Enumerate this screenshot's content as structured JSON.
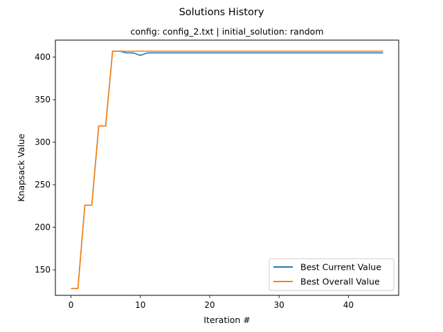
{
  "chart_data": {
    "type": "line",
    "title": "Solutions History",
    "subtitle": "config: config_2.txt | initial_solution: random",
    "xlabel": "Iteration #",
    "ylabel": "Knapsack Value",
    "xlim": [
      -2.25,
      47.25
    ],
    "ylim": [
      120,
      420
    ],
    "xticks": [
      0,
      10,
      20,
      30,
      40
    ],
    "yticks": [
      150,
      200,
      250,
      300,
      350,
      400
    ],
    "grid": false,
    "legend_position": "lower-right",
    "series": [
      {
        "name": "Best Current Value",
        "color": "#1f77b4",
        "x": [
          0,
          1,
          2,
          3,
          4,
          5,
          6,
          7,
          8,
          9,
          10,
          11,
          12,
          13,
          14,
          15,
          16,
          17,
          18,
          19,
          20,
          21,
          22,
          23,
          24,
          25,
          26,
          27,
          28,
          29,
          30,
          31,
          32,
          33,
          34,
          35,
          36,
          37,
          38,
          39,
          40,
          41,
          42,
          43,
          44,
          45
        ],
        "y": [
          128,
          128,
          226,
          226,
          319,
          319,
          407,
          407,
          405,
          405,
          402,
          405,
          405,
          405,
          405,
          405,
          405,
          405,
          405,
          405,
          405,
          405,
          405,
          405,
          405,
          405,
          405,
          405,
          405,
          405,
          405,
          405,
          405,
          405,
          405,
          405,
          405,
          405,
          405,
          405,
          405,
          405,
          405,
          405,
          405,
          405
        ]
      },
      {
        "name": "Best Overall Value",
        "color": "#ff7f0e",
        "x": [
          0,
          1,
          2,
          3,
          4,
          5,
          6,
          7,
          8,
          9,
          10,
          11,
          12,
          13,
          14,
          15,
          16,
          17,
          18,
          19,
          20,
          21,
          22,
          23,
          24,
          25,
          26,
          27,
          28,
          29,
          30,
          31,
          32,
          33,
          34,
          35,
          36,
          37,
          38,
          39,
          40,
          41,
          42,
          43,
          44,
          45
        ],
        "y": [
          128,
          128,
          226,
          226,
          319,
          319,
          407,
          407,
          407,
          407,
          407,
          407,
          407,
          407,
          407,
          407,
          407,
          407,
          407,
          407,
          407,
          407,
          407,
          407,
          407,
          407,
          407,
          407,
          407,
          407,
          407,
          407,
          407,
          407,
          407,
          407,
          407,
          407,
          407,
          407,
          407,
          407,
          407,
          407,
          407,
          407
        ]
      }
    ]
  }
}
